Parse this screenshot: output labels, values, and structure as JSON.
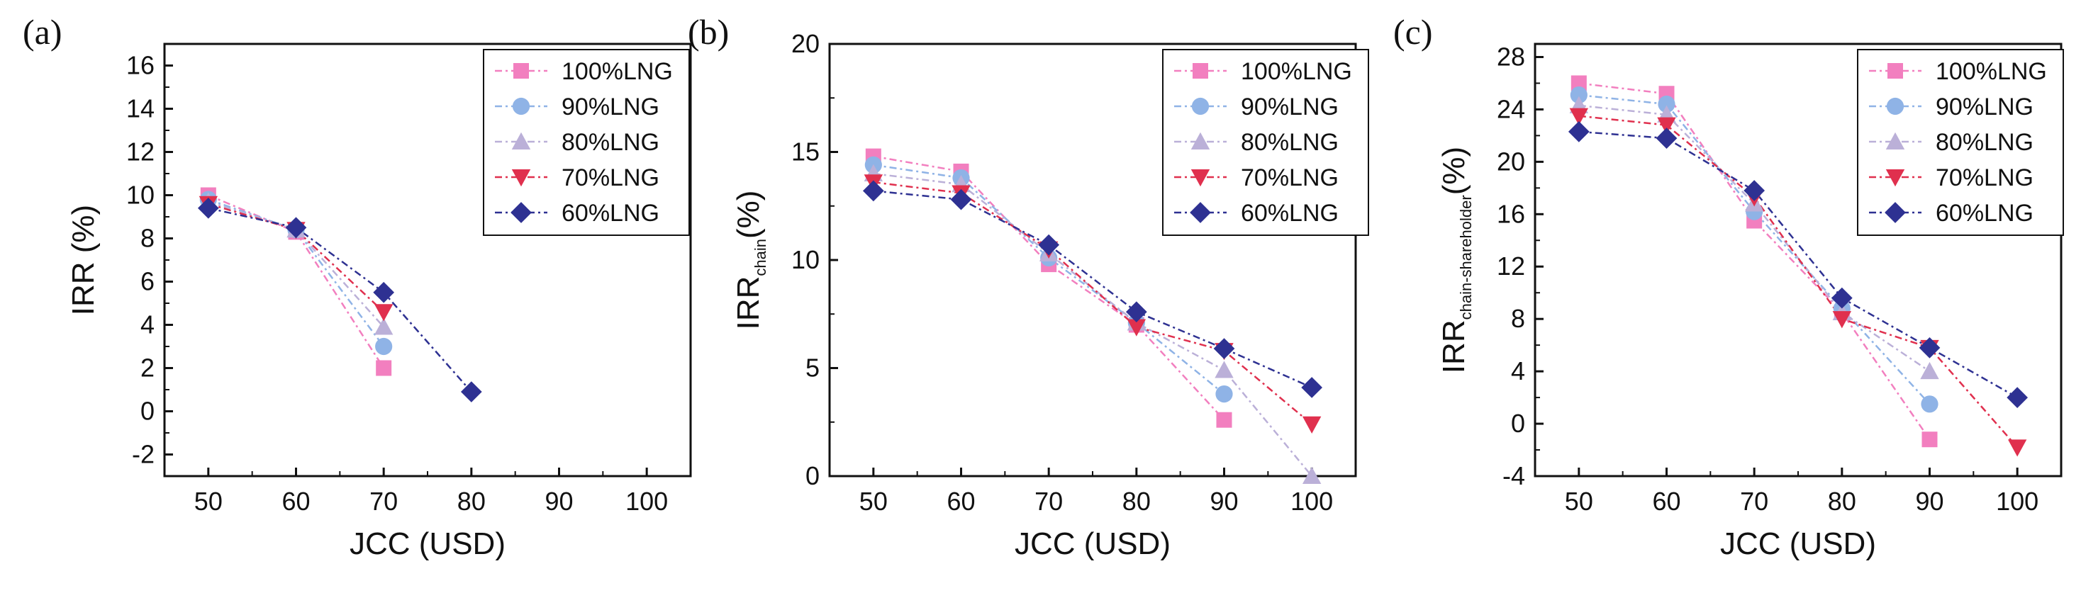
{
  "figure": {
    "colors": {
      "100%LNG": "#f27fbf",
      "90%LNG": "#8fb3e6",
      "80%LNG": "#bbb0d8",
      "70%LNG": "#e0304e",
      "60%LNG": "#2e3192"
    },
    "markers": {
      "100%LNG": "square",
      "90%LNG": "circle",
      "80%LNG": "triangle-up",
      "70%LNG": "triangle-down",
      "60%LNG": "diamond"
    }
  },
  "chart_data": [
    {
      "panel": "(a)",
      "type": "line",
      "xlabel": "JCC (USD)",
      "ylabel": "IRR (%)",
      "ylabel_sub": "",
      "ylabel_tail": "",
      "xlim": [
        45,
        105
      ],
      "ylim": [
        -3,
        17
      ],
      "xticks": [
        50,
        60,
        70,
        80,
        90,
        100
      ],
      "yticks": [
        -2,
        0,
        2,
        4,
        6,
        8,
        10,
        12,
        14,
        16
      ],
      "legend": "top-right",
      "series": [
        {
          "name": "100%LNG",
          "x": [
            50,
            60,
            70
          ],
          "y": [
            10.0,
            8.3,
            2.0
          ]
        },
        {
          "name": "90%LNG",
          "x": [
            50,
            60,
            70
          ],
          "y": [
            9.8,
            8.4,
            3.0
          ]
        },
        {
          "name": "80%LNG",
          "x": [
            50,
            60,
            70
          ],
          "y": [
            9.7,
            8.4,
            3.9
          ]
        },
        {
          "name": "70%LNG",
          "x": [
            50,
            60,
            70
          ],
          "y": [
            9.6,
            8.4,
            4.6
          ]
        },
        {
          "name": "60%LNG",
          "x": [
            50,
            60,
            70,
            80
          ],
          "y": [
            9.4,
            8.5,
            5.5,
            0.9
          ]
        }
      ]
    },
    {
      "panel": "(b)",
      "type": "line",
      "xlabel": "JCC (USD)",
      "ylabel": "IRR",
      "ylabel_sub": "chain",
      "ylabel_tail": "(%)",
      "xlim": [
        45,
        105
      ],
      "ylim": [
        0,
        20
      ],
      "xticks": [
        50,
        60,
        70,
        80,
        90,
        100
      ],
      "yticks": [
        0,
        5,
        10,
        15,
        20
      ],
      "legend": "top-right",
      "series": [
        {
          "name": "100%LNG",
          "x": [
            50,
            60,
            70,
            80,
            90
          ],
          "y": [
            14.8,
            14.1,
            9.8,
            7.0,
            2.6
          ]
        },
        {
          "name": "90%LNG",
          "x": [
            50,
            60,
            70,
            80,
            90
          ],
          "y": [
            14.4,
            13.8,
            10.1,
            7.1,
            3.8
          ]
        },
        {
          "name": "80%LNG",
          "x": [
            50,
            60,
            70,
            80,
            90,
            100
          ],
          "y": [
            14.0,
            13.5,
            10.3,
            7.1,
            4.9,
            0.0
          ]
        },
        {
          "name": "70%LNG",
          "x": [
            50,
            60,
            70,
            80,
            90,
            100
          ],
          "y": [
            13.6,
            13.1,
            10.5,
            6.9,
            5.8,
            2.4
          ]
        },
        {
          "name": "60%LNG",
          "x": [
            50,
            60,
            70,
            80,
            90,
            100
          ],
          "y": [
            13.2,
            12.8,
            10.7,
            7.6,
            5.9,
            4.1
          ]
        }
      ]
    },
    {
      "panel": "(c)",
      "type": "line",
      "xlabel": "JCC (USD)",
      "ylabel": "IRR",
      "ylabel_sub": "chain-shareholder",
      "ylabel_tail": "(%)",
      "xlim": [
        45,
        105
      ],
      "ylim": [
        -4,
        29
      ],
      "xticks": [
        50,
        60,
        70,
        80,
        90,
        100
      ],
      "yticks": [
        -4,
        0,
        4,
        8,
        12,
        16,
        20,
        24,
        28
      ],
      "legend": "top-right",
      "series": [
        {
          "name": "100%LNG",
          "x": [
            50,
            60,
            70,
            80,
            90
          ],
          "y": [
            26.0,
            25.2,
            15.5,
            8.5,
            -1.2
          ]
        },
        {
          "name": "90%LNG",
          "x": [
            50,
            60,
            70,
            80,
            90
          ],
          "y": [
            25.1,
            24.4,
            16.2,
            8.8,
            1.5
          ]
        },
        {
          "name": "80%LNG",
          "x": [
            50,
            60,
            70,
            80,
            90
          ],
          "y": [
            24.3,
            23.6,
            16.8,
            8.5,
            4.0
          ]
        },
        {
          "name": "70%LNG",
          "x": [
            50,
            60,
            70,
            80,
            90,
            100
          ],
          "y": [
            23.5,
            22.8,
            17.3,
            8.0,
            5.8,
            -1.8
          ]
        },
        {
          "name": "60%LNG",
          "x": [
            50,
            60,
            70,
            80,
            90,
            100
          ],
          "y": [
            22.3,
            21.8,
            17.8,
            9.6,
            5.8,
            2.0
          ]
        }
      ]
    }
  ]
}
